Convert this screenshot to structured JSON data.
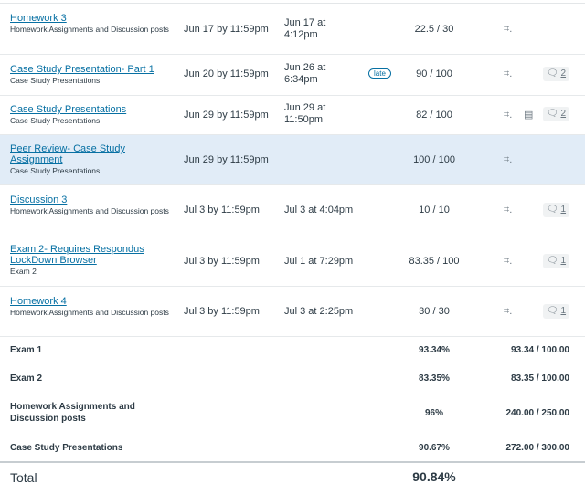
{
  "assignments": [
    {
      "name": "Homework 3",
      "group": "Homework Assignments and Discussion posts",
      "due": "Jun 17 by 11:59pm",
      "submitted": "Jun 17 at 4:12pm",
      "late": "",
      "score": "22.5 / 30",
      "comments": ""
    },
    {
      "name": "Case Study Presentation- Part 1",
      "group": "Case Study Presentations",
      "due": "Jun 20 by 11:59pm",
      "submitted": "Jun 26 at 6:34pm",
      "late": "late",
      "score": "90 / 100",
      "comments": "2"
    },
    {
      "name": "Case Study Presentations",
      "group": "Case Study Presentations",
      "due": "Jun 29 by 11:59pm",
      "submitted": "Jun 29 at 11:50pm",
      "late": "",
      "score": "82 / 100",
      "comments": "2"
    },
    {
      "name": "Peer Review- Case Study Assignment",
      "group": "Case Study Presentations",
      "due": "Jun 29 by 11:59pm",
      "submitted": "",
      "late": "",
      "score": "100 / 100",
      "comments": ""
    },
    {
      "name": "Discussion 3",
      "group": "Homework Assignments and Discussion posts",
      "due": "Jul 3 by 11:59pm",
      "submitted": "Jul 3 at 4:04pm",
      "late": "",
      "score": "10 / 10",
      "comments": "1"
    },
    {
      "name": "Exam 2- Requires Respondus LockDown Browser",
      "group": "Exam 2",
      "due": "Jul 3 by 11:59pm",
      "submitted": "Jul 1 at 7:29pm",
      "late": "",
      "score": "83.35 / 100",
      "comments": "1"
    },
    {
      "name": "Homework 4",
      "group": "Homework Assignments and Discussion posts",
      "due": "Jul 3 by 11:59pm",
      "submitted": "Jul 3 at 2:25pm",
      "late": "",
      "score": "30 / 30",
      "comments": "1"
    }
  ],
  "summary": [
    {
      "label": "Exam 1",
      "percent": "93.34%",
      "points": "93.34 / 100.00"
    },
    {
      "label": "Exam 2",
      "percent": "83.35%",
      "points": "83.35 / 100.00"
    },
    {
      "label": "Homework Assignments and Discussion posts",
      "percent": "96%",
      "points": "240.00 / 250.00"
    },
    {
      "label": "Case Study Presentations",
      "percent": "90.67%",
      "points": "272.00 / 300.00"
    }
  ],
  "total": {
    "label": "Total",
    "value": "90.84%"
  },
  "icons": {
    "rubric": "rubric-icon",
    "muted": "muted-icon",
    "comments": "comment-icon"
  }
}
